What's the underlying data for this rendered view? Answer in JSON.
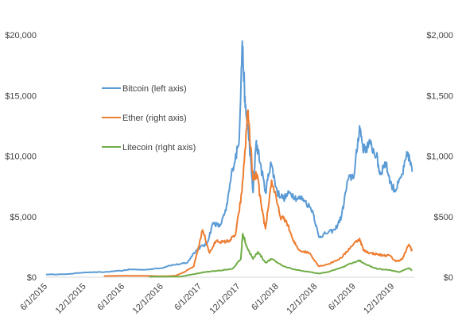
{
  "chart_data": {
    "type": "line",
    "title": "",
    "xlabel": "",
    "ylabel": "",
    "x_tick_labels": [
      "6/1/2015",
      "12/1/2015",
      "6/1/2016",
      "12/1/2016",
      "6/1/2017",
      "12/1/2017",
      "6/1/2018",
      "12/1/2018",
      "6/1/2019",
      "12/1/2019"
    ],
    "y_left": {
      "ylim": [
        0,
        20000
      ],
      "ticks": [
        0,
        5000,
        10000,
        15000,
        20000
      ],
      "tick_labels": [
        "$0",
        "$5,000",
        "$10,000",
        "$15,000",
        "$20,000"
      ]
    },
    "y_right": {
      "ylim": [
        0,
        2000
      ],
      "ticks": [
        0,
        500,
        1000,
        1500,
        2000
      ],
      "tick_labels": [
        "$0",
        "$500",
        "$1,000",
        "$1,500",
        "$2,000"
      ]
    },
    "grid": false,
    "legend_position": "center-left, stacked vertically",
    "series": [
      {
        "name": "Bitcoin (left axis)",
        "axis": "left",
        "color": "#5b9bd5",
        "x": [
          "2015-06-01",
          "2015-09-01",
          "2015-12-01",
          "2016-03-01",
          "2016-06-01",
          "2016-07-01",
          "2016-09-01",
          "2016-12-01",
          "2017-01-01",
          "2017-03-01",
          "2017-04-01",
          "2017-05-01",
          "2017-06-01",
          "2017-07-01",
          "2017-08-01",
          "2017-09-01",
          "2017-10-01",
          "2017-11-01",
          "2017-12-01",
          "2017-12-17",
          "2017-12-31",
          "2018-01-15",
          "2018-02-06",
          "2018-02-20",
          "2018-03-01",
          "2018-04-06",
          "2018-05-01",
          "2018-06-01",
          "2018-07-01",
          "2018-08-01",
          "2018-09-01",
          "2018-10-01",
          "2018-11-15",
          "2018-12-15",
          "2019-01-15",
          "2019-03-01",
          "2019-04-01",
          "2019-05-01",
          "2019-06-01",
          "2019-06-26",
          "2019-07-15",
          "2019-08-15",
          "2019-09-15",
          "2019-10-01",
          "2019-10-26",
          "2019-11-25",
          "2019-12-15",
          "2020-01-15",
          "2020-02-10",
          "2020-03-01"
        ],
        "values": [
          230,
          240,
          400,
          420,
          550,
          650,
          610,
          750,
          950,
          1100,
          1200,
          2000,
          2500,
          2700,
          4500,
          4200,
          5500,
          9000,
          11000,
          19500,
          14000,
          12000,
          7000,
          11000,
          10500,
          7000,
          9500,
          7000,
          6500,
          7000,
          6500,
          6500,
          5500,
          3300,
          3600,
          3900,
          5000,
          8000,
          8500,
          12500,
          10500,
          11000,
          10000,
          8500,
          9500,
          7500,
          7200,
          8500,
          10300,
          8700
        ]
      },
      {
        "name": "Ether (right axis)",
        "axis": "right",
        "color": "#ed7d31",
        "x": [
          "2016-03-01",
          "2016-06-01",
          "2016-09-01",
          "2016-12-01",
          "2017-02-01",
          "2017-03-15",
          "2017-05-01",
          "2017-06-12",
          "2017-07-15",
          "2017-08-15",
          "2017-09-15",
          "2017-10-15",
          "2017-11-15",
          "2017-12-15",
          "2018-01-13",
          "2018-02-06",
          "2018-02-25",
          "2018-03-20",
          "2018-04-06",
          "2018-05-05",
          "2018-06-15",
          "2018-07-15",
          "2018-08-15",
          "2018-09-15",
          "2018-11-01",
          "2018-12-15",
          "2019-02-01",
          "2019-04-01",
          "2019-05-15",
          "2019-06-26",
          "2019-07-15",
          "2019-08-15",
          "2019-09-15",
          "2019-10-15",
          "2019-11-15",
          "2019-12-15",
          "2020-01-15",
          "2020-02-15",
          "2020-03-01"
        ],
        "values": [
          10,
          12,
          12,
          8,
          11,
          40,
          90,
          390,
          200,
          300,
          290,
          300,
          350,
          700,
          1380,
          800,
          850,
          550,
          400,
          800,
          500,
          460,
          300,
          220,
          200,
          90,
          110,
          160,
          250,
          320,
          220,
          200,
          190,
          180,
          180,
          130,
          150,
          270,
          220
        ]
      },
      {
        "name": "Litecoin (right axis)",
        "axis": "right",
        "color": "#70ad47",
        "x": [
          "2016-10-01",
          "2016-12-01",
          "2017-03-01",
          "2017-05-01",
          "2017-06-01",
          "2017-07-01",
          "2017-09-01",
          "2017-11-01",
          "2017-12-10",
          "2017-12-19",
          "2018-01-10",
          "2018-02-06",
          "2018-03-01",
          "2018-04-06",
          "2018-05-05",
          "2018-07-01",
          "2018-09-01",
          "2018-12-15",
          "2019-02-01",
          "2019-04-01",
          "2019-06-22",
          "2019-08-01",
          "2019-09-15",
          "2019-11-15",
          "2020-01-01",
          "2020-02-15",
          "2020-03-01"
        ],
        "values": [
          4,
          4,
          5,
          25,
          35,
          45,
          55,
          70,
          150,
          360,
          240,
          150,
          210,
          120,
          150,
          90,
          60,
          30,
          45,
          80,
          140,
          100,
          70,
          60,
          42,
          75,
          55
        ]
      }
    ]
  }
}
